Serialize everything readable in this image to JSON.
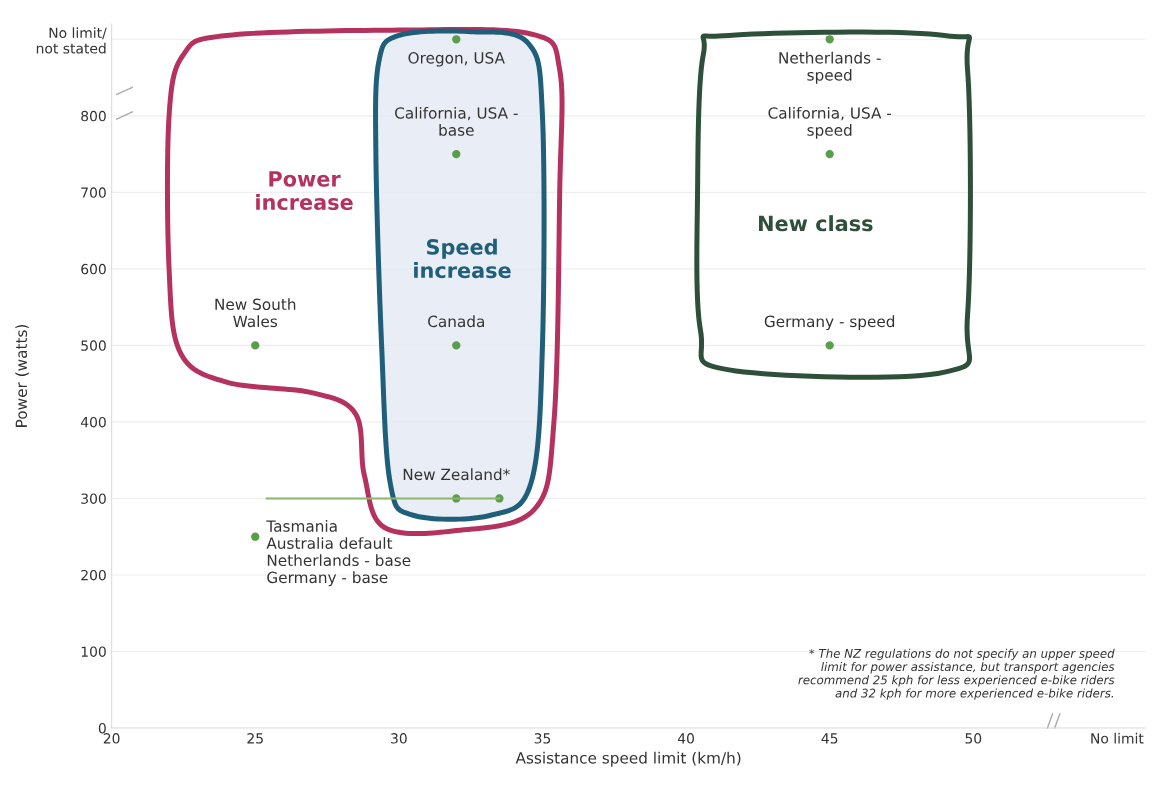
{
  "chart_data": {
    "type": "scatter",
    "xlabel": "Assistance speed limit (km/h)",
    "ylabel": "Power (watts)",
    "xlim": [
      20,
      56
    ],
    "xticks": [
      20,
      25,
      30,
      35,
      40,
      45,
      50,
      {
        "value": 55,
        "label": "No limit"
      }
    ],
    "ylim": [
      0,
      920
    ],
    "yticks": [
      0,
      100,
      200,
      300,
      400,
      500,
      600,
      700,
      800,
      {
        "value": 900,
        "label": "No limit/\nnot stated"
      }
    ],
    "grid": "y",
    "marker": "circle",
    "series": [
      {
        "type": "line",
        "marker": "none",
        "color": "#8ab56a",
        "x": [
          25.4,
          33.5
        ],
        "values": [
          300,
          300
        ]
      },
      {
        "color": "#5a9e4b",
        "x": [
          25,
          25,
          32,
          32,
          32,
          32,
          33.5,
          45,
          45,
          45
        ],
        "values": [
          500,
          250,
          900,
          750,
          500,
          300,
          300,
          900,
          750,
          500
        ]
      }
    ],
    "annotations": [
      {
        "text": "Oregon, USA",
        "x": 32,
        "y": 900
      },
      {
        "text": "California, USA -\nbase",
        "x": 32,
        "y": 750
      },
      {
        "text": "Canada",
        "x": 32,
        "y": 500
      },
      {
        "text": "New Zealand*",
        "x": 32,
        "y": 300
      },
      {
        "text": "New South\nWales",
        "x": 25,
        "y": 500
      },
      {
        "text": "Tasmania\nAustralia default\nNetherlands - base\nGermany - base",
        "x": 25,
        "y": 250
      },
      {
        "text": "Netherlands -\nspeed",
        "x": 45,
        "y": 900
      },
      {
        "text": "California, USA -\nspeed",
        "x": 45,
        "y": 750
      },
      {
        "text": "Germany - speed",
        "x": 45,
        "y": 500
      },
      "Power\nincrease",
      "Speed\nincrease",
      "New class",
      "* The NZ regulations do not specify an upper speed\nlimit for power assistance, but transport agencies\nrecommend 25 kph for less experienced e-bike riders\nand 32 kph for more experienced e-bike riders."
    ]
  }
}
